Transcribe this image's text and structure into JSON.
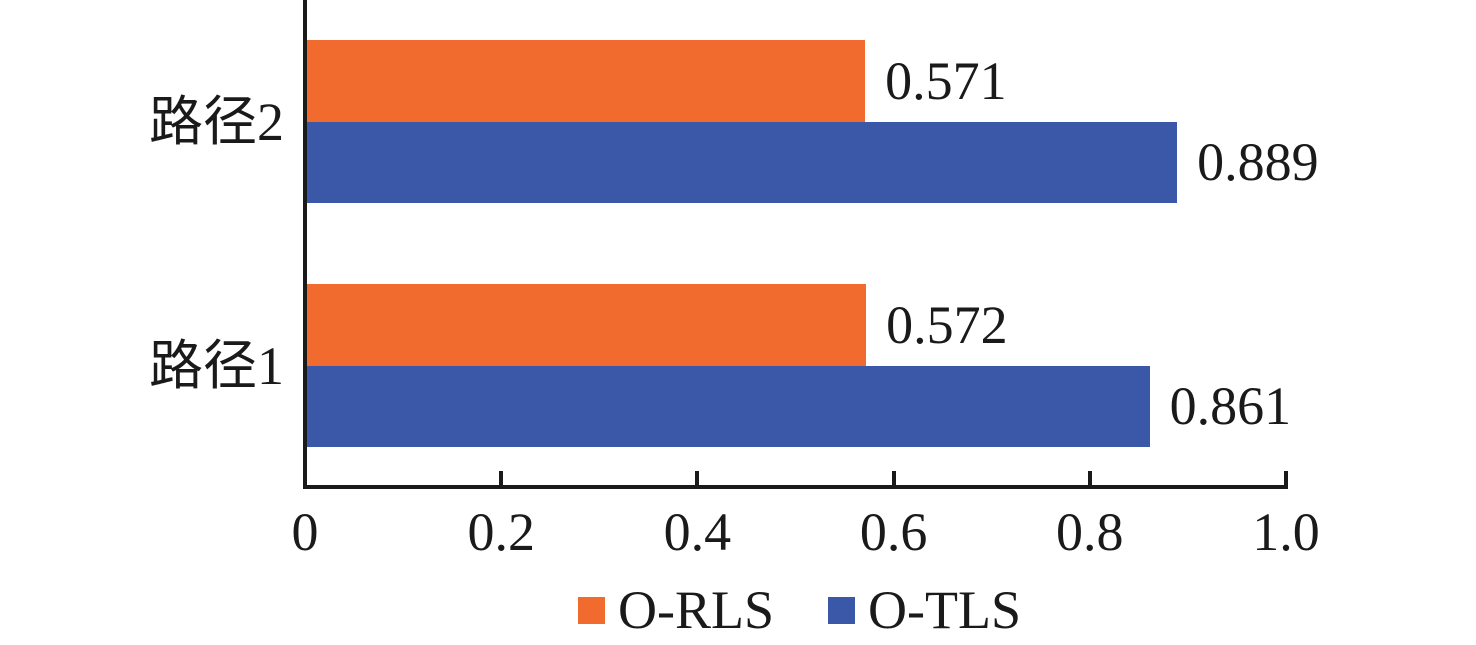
{
  "chart_data": {
    "type": "bar",
    "orientation": "horizontal",
    "title": "",
    "xlabel": "",
    "ylabel": "",
    "categories": [
      "路径2",
      "路径1"
    ],
    "series": [
      {
        "name": "O-RLS",
        "color": "#F26B2E",
        "values": [
          0.571,
          0.572
        ],
        "labels": [
          "0.571",
          "0.572"
        ]
      },
      {
        "name": "O-TLS",
        "color": "#3A57A8",
        "values": [
          0.889,
          0.861
        ],
        "labels": [
          "0.889",
          "0.861"
        ]
      }
    ],
    "xlim": [
      0,
      1.0
    ],
    "xticks": [
      {
        "value": 0,
        "label": "0"
      },
      {
        "value": 0.2,
        "label": "0.2"
      },
      {
        "value": 0.4,
        "label": "0.4"
      },
      {
        "value": 0.6,
        "label": "0.6"
      },
      {
        "value": 0.8,
        "label": "0.8"
      },
      {
        "value": 1.0,
        "label": "1.0"
      }
    ],
    "grid": false,
    "legend_position": "bottom",
    "axis_color": "#1A1A1A",
    "text_color": "#1A1A1A"
  }
}
